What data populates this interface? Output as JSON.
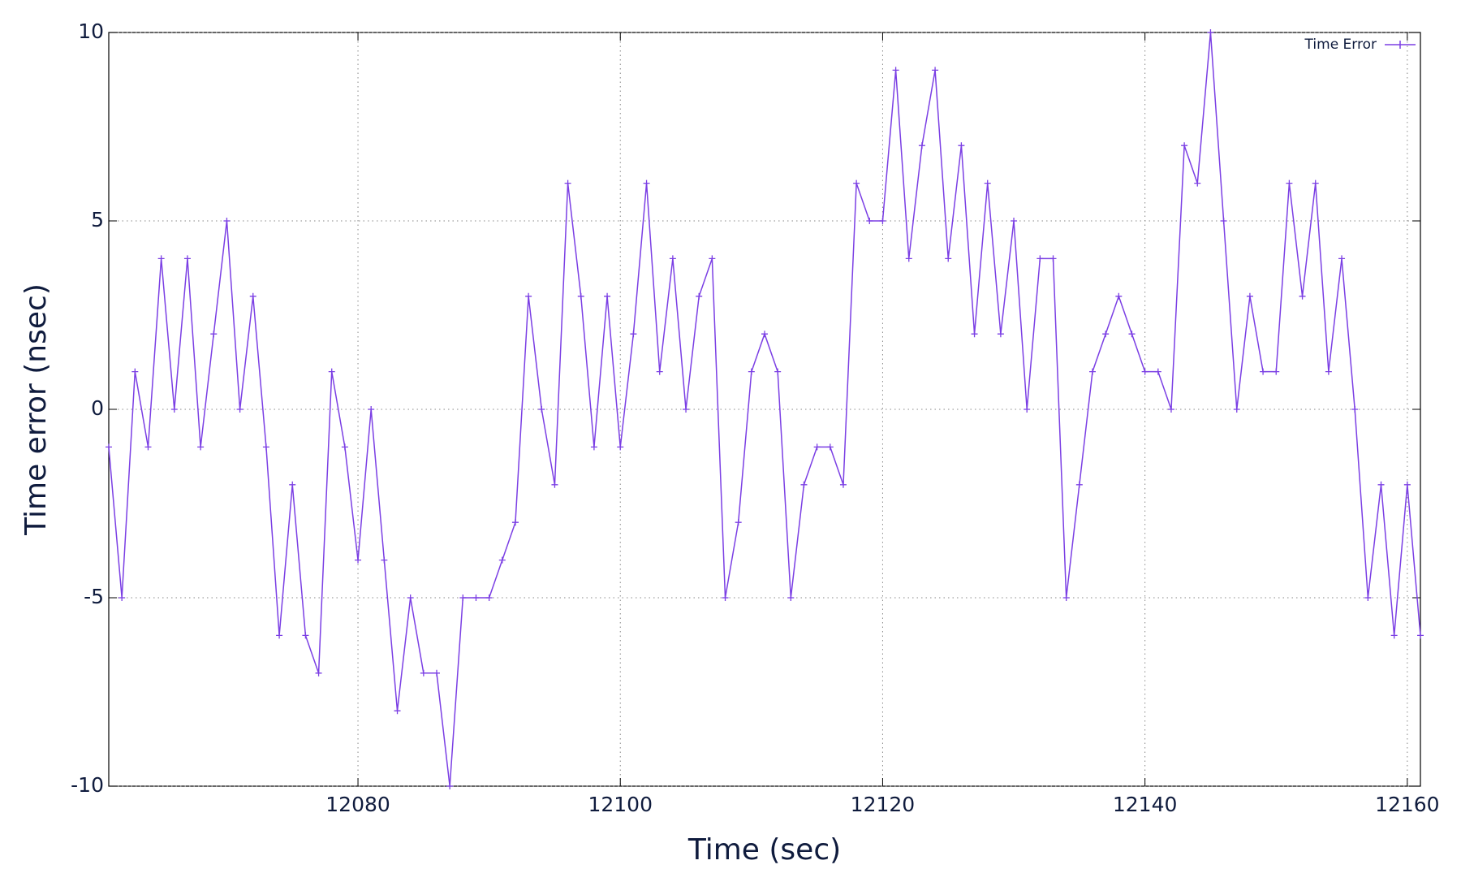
{
  "chart_data": {
    "type": "line",
    "x_label": "Time (sec)",
    "y_label": "Time error (nsec)",
    "x": [
      12061,
      12062,
      12063,
      12064,
      12065,
      12066,
      12067,
      12068,
      12069,
      12070,
      12071,
      12072,
      12073,
      12074,
      12075,
      12076,
      12077,
      12078,
      12079,
      12080,
      12081,
      12082,
      12083,
      12084,
      12085,
      12086,
      12087,
      12088,
      12089,
      12090,
      12091,
      12092,
      12093,
      12094,
      12095,
      12096,
      12097,
      12098,
      12099,
      12100,
      12101,
      12102,
      12103,
      12104,
      12105,
      12106,
      12107,
      12108,
      12109,
      12110,
      12111,
      12112,
      12113,
      12114,
      12115,
      12116,
      12117,
      12118,
      12119,
      12120,
      12121,
      12122,
      12123,
      12124,
      12125,
      12126,
      12127,
      12128,
      12129,
      12130,
      12131,
      12132,
      12133,
      12134,
      12135,
      12136,
      12137,
      12138,
      12139,
      12140,
      12141,
      12142,
      12143,
      12144,
      12145,
      12146,
      12147,
      12148,
      12149,
      12150,
      12151,
      12152,
      12153,
      12154,
      12155,
      12156,
      12157,
      12158,
      12159,
      12160,
      12161
    ],
    "series": [
      {
        "name": "Time Error",
        "color": "#7b3fe4",
        "values": [
          -1,
          -5,
          1,
          -1,
          4,
          0,
          4,
          -1,
          2,
          5,
          0,
          3,
          -1,
          -6,
          -2,
          -6,
          -7,
          1,
          -1,
          -4,
          0,
          -4,
          -8,
          -5,
          -7,
          -7,
          -10,
          -5,
          -5,
          -5,
          -4,
          -3,
          3,
          0,
          -2,
          6,
          3,
          -1,
          3,
          -1,
          2,
          6,
          1,
          4,
          0,
          3,
          4,
          -5,
          -3,
          1,
          2,
          1,
          -5,
          -2,
          -1,
          -1,
          -2,
          6,
          5,
          5,
          9,
          4,
          7,
          9,
          4,
          7,
          2,
          6,
          2,
          5,
          0,
          4,
          4,
          -5,
          -2,
          1,
          2,
          3,
          2,
          1,
          1,
          0,
          7,
          6,
          10,
          5,
          0,
          3,
          1,
          1,
          6,
          3,
          6,
          1,
          4,
          0,
          -5,
          -2,
          -6,
          -2,
          -6
        ]
      }
    ],
    "xlim": [
      12061,
      12161
    ],
    "ylim": [
      -10,
      10
    ],
    "xticks": [
      12080,
      12100,
      12120,
      12140,
      12160
    ],
    "yticks": [
      -10,
      -5,
      0,
      5,
      10
    ],
    "grid": true,
    "legend": "upper right"
  }
}
